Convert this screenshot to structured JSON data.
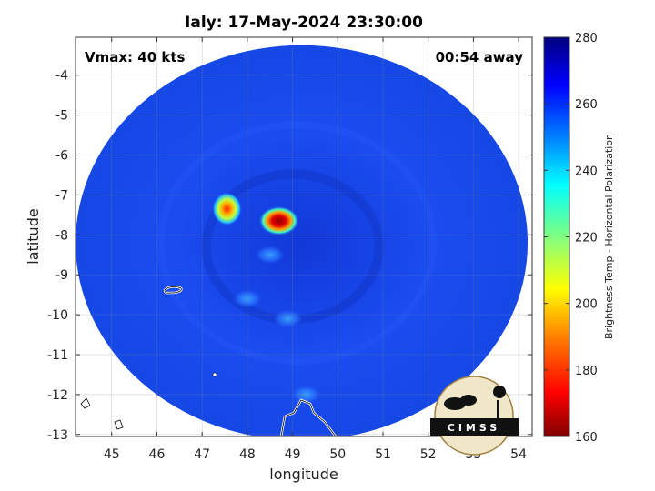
{
  "title": "Ialy: 17-May-2024 23:30:00",
  "annotations": {
    "vmax": "Vmax: 40 kts",
    "time_away": "00:54 away"
  },
  "logo_text": "CIMSS",
  "colorbar": {
    "label": "Brightness Temp - Horizontal Polarization",
    "min": 160,
    "max": 280,
    "ticks": [
      "280",
      "260",
      "240",
      "220",
      "200",
      "180",
      "160"
    ],
    "colors": [
      "#800000",
      "#ff0000",
      "#ff8000",
      "#ffff00",
      "#80ff80",
      "#00ffff",
      "#0080ff",
      "#0000ff",
      "#000080"
    ]
  },
  "chart_data": {
    "type": "heatmap",
    "title": "Ialy: 17-May-2024 23:30:00",
    "xlabel": "longitude",
    "ylabel": "latitude",
    "xlim": [
      44.2,
      54.3
    ],
    "ylim": [
      -13.05,
      -3.05
    ],
    "xticks": [
      45,
      46,
      47,
      48,
      49,
      50,
      51,
      52,
      53,
      54
    ],
    "yticks": [
      -4,
      -5,
      -6,
      -7,
      -8,
      -9,
      -10,
      -11,
      -12,
      -13
    ],
    "grid": true,
    "swath": {
      "center_lon": 49.2,
      "center_lat": -8.2,
      "lon_radius": 5.0,
      "lat_radius": 4.95
    },
    "background_temp": 262,
    "features": [
      {
        "lon": 48.7,
        "lat": -7.65,
        "temp": 166,
        "label": "cold core"
      },
      {
        "lon": 47.55,
        "lat": -7.35,
        "temp": 180,
        "label": "cold cloud"
      },
      {
        "lon": 48.5,
        "lat": -8.5,
        "temp": 250,
        "label": "band"
      },
      {
        "lon": 48.0,
        "lat": -9.6,
        "temp": 248,
        "label": "band"
      },
      {
        "lon": 48.9,
        "lat": -10.1,
        "temp": 250,
        "label": "band"
      },
      {
        "lon": 49.3,
        "lat": -12.0,
        "temp": 245,
        "label": "band"
      }
    ]
  }
}
